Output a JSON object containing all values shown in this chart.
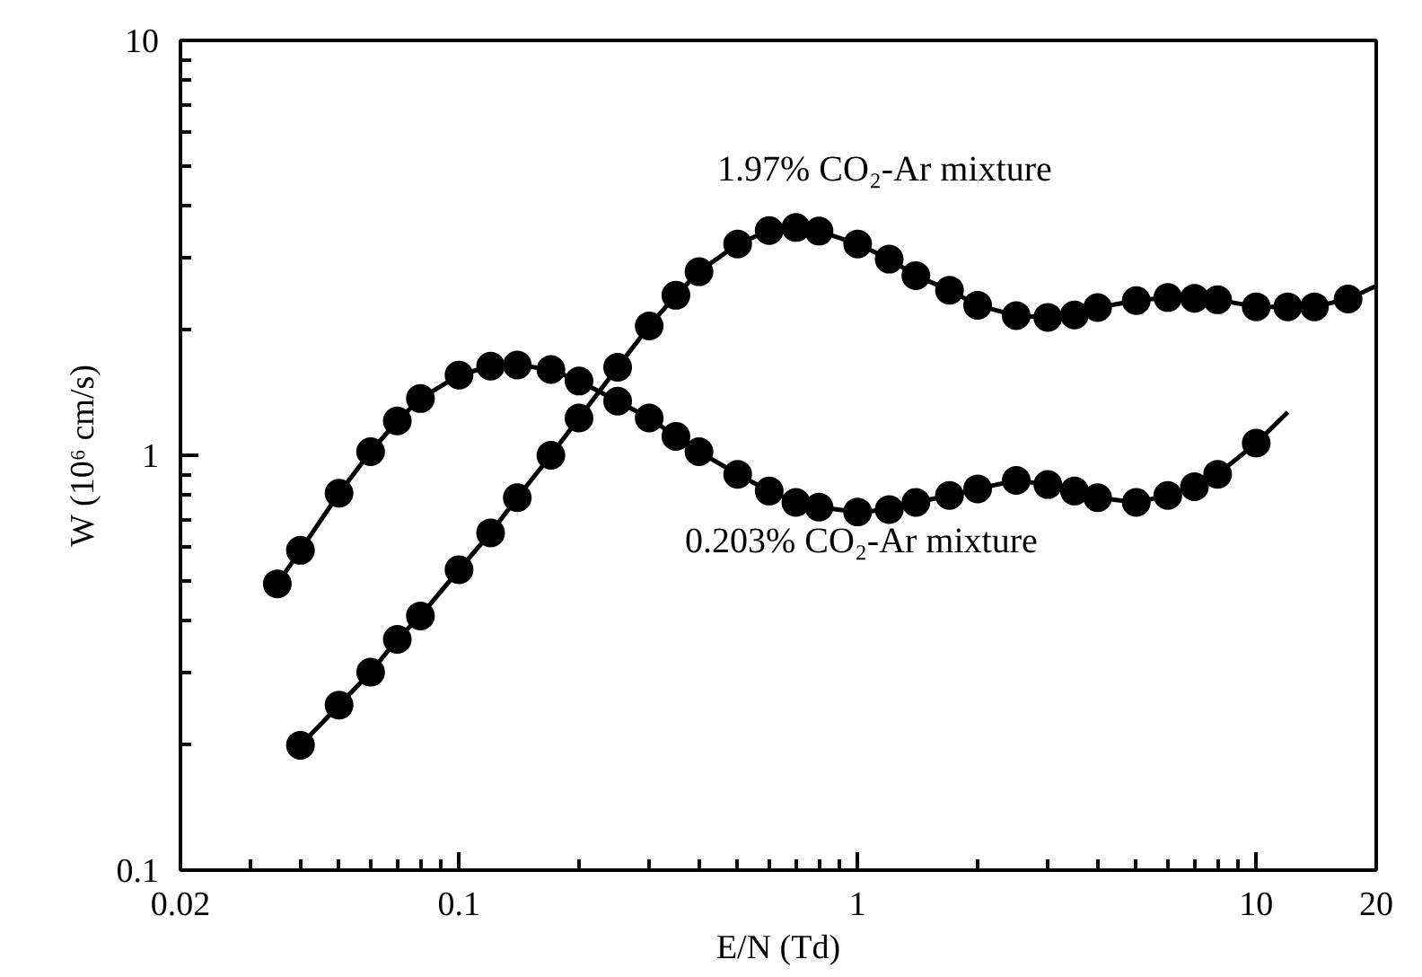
{
  "chart_data": {
    "type": "scatter",
    "xlabel": "E/N (Td)",
    "ylabel": "W (10⁶ cm/s)",
    "log": "xy",
    "grid": false,
    "marker": "circle",
    "xlim": [
      0.02,
      20
    ],
    "ylim": [
      0.1,
      10
    ],
    "xticks": [
      0.02,
      {
        "value": 0.03,
        "label": null
      },
      {
        "value": 0.04,
        "label": null
      },
      {
        "value": 0.05,
        "label": null
      },
      {
        "value": 0.06,
        "label": null
      },
      {
        "value": 0.07,
        "label": null
      },
      {
        "value": 0.08,
        "label": null
      },
      {
        "value": 0.09,
        "label": null
      },
      0.1,
      {
        "value": 0.2,
        "label": null
      },
      {
        "value": 0.3,
        "label": null
      },
      {
        "value": 0.4,
        "label": null
      },
      {
        "value": 0.5,
        "label": null
      },
      {
        "value": 0.6,
        "label": null
      },
      {
        "value": 0.7,
        "label": null
      },
      {
        "value": 0.8,
        "label": null
      },
      {
        "value": 0.9,
        "label": null
      },
      1,
      {
        "value": 2,
        "label": null
      },
      {
        "value": 3,
        "label": null
      },
      {
        "value": 4,
        "label": null
      },
      {
        "value": 5,
        "label": null
      },
      {
        "value": 6,
        "label": null
      },
      {
        "value": 7,
        "label": null
      },
      {
        "value": 8,
        "label": null
      },
      {
        "value": 9,
        "label": null
      },
      10,
      20
    ],
    "yticks": [
      0.1,
      {
        "value": 0.2,
        "label": null
      },
      {
        "value": 0.3,
        "label": null
      },
      {
        "value": 0.4,
        "label": null
      },
      {
        "value": 0.5,
        "label": null
      },
      {
        "value": 0.6,
        "label": null
      },
      {
        "value": 0.7,
        "label": null
      },
      {
        "value": 0.8,
        "label": null
      },
      {
        "value": 0.9,
        "label": null
      },
      1,
      {
        "value": 2,
        "label": null
      },
      {
        "value": 3,
        "label": null
      },
      {
        "value": 4,
        "label": null
      },
      {
        "value": 5,
        "label": null
      },
      {
        "value": 6,
        "label": null
      },
      {
        "value": 7,
        "label": null
      },
      {
        "value": 8,
        "label": null
      },
      {
        "value": 9,
        "label": null
      },
      10
    ],
    "series": [
      {
        "type": "line",
        "color": "#000000",
        "marker": "none",
        "x": [
          0.035,
          0.04,
          0.05,
          0.06,
          0.07,
          0.08,
          0.1,
          0.12,
          0.14,
          0.17,
          0.2,
          0.25,
          0.3,
          0.35,
          0.4,
          0.5,
          0.6,
          0.7,
          0.8,
          1,
          1.2,
          1.4,
          1.7,
          2,
          2.5,
          3,
          3.5,
          4,
          5,
          6,
          7,
          8,
          10,
          12
        ],
        "values": [
          0.49,
          0.59,
          0.81,
          1.02,
          1.21,
          1.37,
          1.56,
          1.64,
          1.65,
          1.61,
          1.51,
          1.35,
          1.23,
          1.11,
          1.02,
          0.9,
          0.82,
          0.77,
          0.75,
          0.73,
          0.74,
          0.77,
          0.8,
          0.83,
          0.87,
          0.85,
          0.82,
          0.79,
          0.77,
          0.8,
          0.84,
          0.9,
          1.07,
          1.27
        ]
      },
      {
        "color": "#000000",
        "x": [
          0.035,
          0.04,
          0.05,
          0.06,
          0.07,
          0.08,
          0.1,
          0.12,
          0.14,
          0.17,
          0.2,
          0.25,
          0.3,
          0.35,
          0.4,
          0.5,
          0.6,
          0.7,
          0.8,
          1,
          1.2,
          1.4,
          1.7,
          2,
          2.5,
          3,
          3.5,
          4,
          5,
          6,
          7,
          8,
          10
        ],
        "values": [
          0.49,
          0.59,
          0.81,
          1.02,
          1.21,
          1.37,
          1.56,
          1.64,
          1.65,
          1.61,
          1.51,
          1.35,
          1.23,
          1.11,
          1.02,
          0.9,
          0.82,
          0.77,
          0.75,
          0.73,
          0.74,
          0.77,
          0.8,
          0.83,
          0.87,
          0.85,
          0.82,
          0.79,
          0.77,
          0.8,
          0.84,
          0.9,
          1.07
        ]
      },
      {
        "type": "line",
        "color": "#000000",
        "marker": "none",
        "x": [
          0.04,
          0.05,
          0.06,
          0.07,
          0.08,
          0.1,
          0.12,
          0.14,
          0.17,
          0.2,
          0.25,
          0.3,
          0.35,
          0.4,
          0.5,
          0.6,
          0.7,
          0.8,
          1,
          1.2,
          1.4,
          1.7,
          2,
          2.5,
          3,
          3.5,
          4,
          5,
          6,
          7,
          8,
          10,
          12,
          14,
          17,
          20
        ],
        "values": [
          0.2,
          0.25,
          0.3,
          0.36,
          0.41,
          0.53,
          0.65,
          0.79,
          1.0,
          1.23,
          1.63,
          2.05,
          2.43,
          2.77,
          3.23,
          3.48,
          3.54,
          3.47,
          3.23,
          2.97,
          2.71,
          2.5,
          2.3,
          2.17,
          2.15,
          2.18,
          2.27,
          2.36,
          2.4,
          2.39,
          2.37,
          2.28,
          2.28,
          2.28,
          2.38,
          2.56
        ]
      },
      {
        "color": "#000000",
        "x": [
          0.04,
          0.05,
          0.06,
          0.07,
          0.08,
          0.1,
          0.12,
          0.14,
          0.17,
          0.2,
          0.25,
          0.3,
          0.35,
          0.4,
          0.5,
          0.6,
          0.7,
          0.8,
          1,
          1.2,
          1.4,
          1.7,
          2,
          2.5,
          3,
          3.5,
          4,
          5,
          6,
          7,
          8,
          10,
          12,
          14,
          17
        ],
        "values": [
          0.2,
          0.25,
          0.3,
          0.36,
          0.41,
          0.53,
          0.65,
          0.79,
          1.0,
          1.23,
          1.63,
          2.05,
          2.43,
          2.77,
          3.23,
          3.48,
          3.54,
          3.47,
          3.23,
          2.97,
          2.71,
          2.5,
          2.3,
          2.17,
          2.15,
          2.18,
          2.27,
          2.36,
          2.4,
          2.39,
          2.37,
          2.28,
          2.28,
          2.28,
          2.38
        ]
      }
    ],
    "annotations": [
      "1.97% CO₂-Ar mixture",
      "0.203% CO₂-Ar mixture"
    ]
  }
}
